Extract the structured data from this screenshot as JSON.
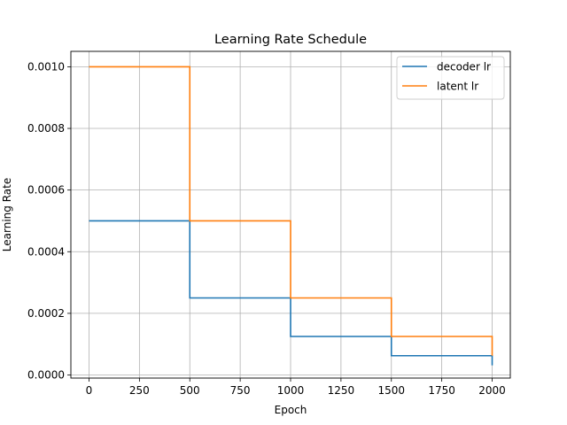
{
  "chart_data": {
    "type": "line",
    "title": "Learning Rate Schedule",
    "xlabel": "Epoch",
    "ylabel": "Learning Rate",
    "xlim": [
      -90,
      2090
    ],
    "ylim": [
      -1e-05,
      0.00105
    ],
    "xticks": [
      0,
      250,
      500,
      750,
      1000,
      1250,
      1500,
      1750,
      2000
    ],
    "xtick_labels": [
      "0",
      "250",
      "500",
      "750",
      "1000",
      "1250",
      "1500",
      "1750",
      "2000"
    ],
    "yticks": [
      0.0,
      0.0002,
      0.0004,
      0.0006,
      0.0008,
      0.001
    ],
    "ytick_labels": [
      "0.0000",
      "0.0002",
      "0.0004",
      "0.0006",
      "0.0008",
      "0.0010"
    ],
    "grid": true,
    "legend_position": "upper right",
    "series": [
      {
        "name": "decoder lr",
        "color": "#1f77b4",
        "step": "post",
        "x": [
          0,
          500,
          1000,
          1500,
          2000
        ],
        "y": [
          0.0005,
          0.00025,
          0.000125,
          6.25e-05,
          3.125e-05
        ]
      },
      {
        "name": "latent lr",
        "color": "#ff7f0e",
        "step": "post",
        "x": [
          0,
          500,
          1000,
          1500,
          2000
        ],
        "y": [
          0.001,
          0.0005,
          0.00025,
          0.000125,
          6.25e-05
        ]
      }
    ]
  }
}
